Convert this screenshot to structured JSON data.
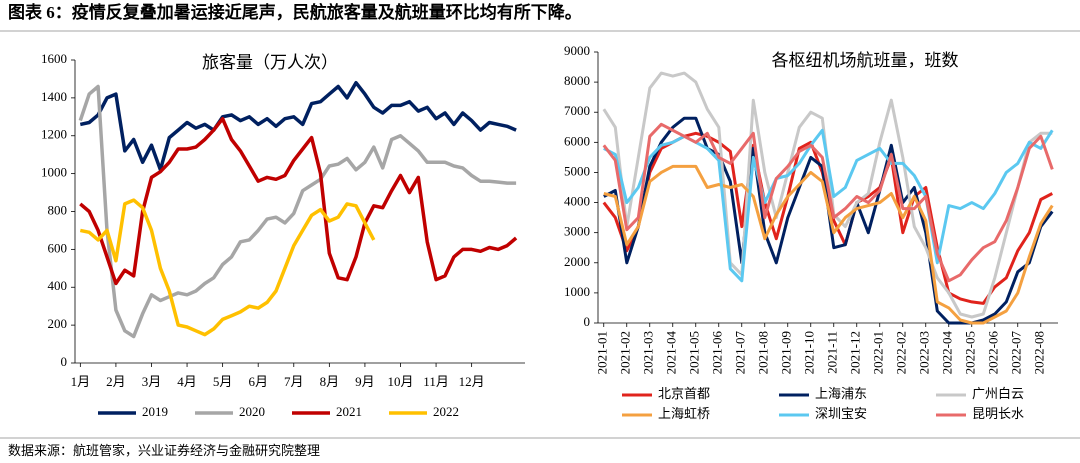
{
  "page_title": "图表 6：疫情反复叠加暑运接近尾声，民航旅客量及航班量环比均有所下降。",
  "source": "数据来源：航班管家，兴业证券经济与金融研究院整理",
  "chart_data": [
    {
      "type": "line",
      "title": "旅客量（万人次）",
      "x": [
        0,
        0.25,
        0.5,
        0.75,
        1,
        1.25,
        1.5,
        1.75,
        2,
        2.25,
        2.5,
        2.75,
        3,
        3.25,
        3.5,
        3.75,
        4,
        4.25,
        4.5,
        4.75,
        5,
        5.25,
        5.5,
        5.75,
        6,
        6.25,
        6.5,
        6.75,
        7,
        7.25,
        7.5,
        7.75,
        8,
        8.25,
        8.5,
        8.75,
        9,
        9.25,
        9.5,
        9.75,
        10,
        10.25,
        10.5,
        10.75,
        11,
        11.25,
        11.5,
        11.75,
        12,
        12.25
      ],
      "xlim": [
        -0.15,
        12.5
      ],
      "xticks": [
        {
          "value": 0,
          "label": "1月"
        },
        {
          "value": 1,
          "label": "2月"
        },
        {
          "value": 2,
          "label": "3月"
        },
        {
          "value": 3,
          "label": "4月"
        },
        {
          "value": 4,
          "label": "5月"
        },
        {
          "value": 5,
          "label": "6月"
        },
        {
          "value": 6,
          "label": "7月"
        },
        {
          "value": 7,
          "label": "8月"
        },
        {
          "value": 8,
          "label": "9月"
        },
        {
          "value": 9,
          "label": "10月"
        },
        {
          "value": 10,
          "label": "11月"
        },
        {
          "value": 11,
          "label": "12月"
        }
      ],
      "ylim": [
        0,
        1600
      ],
      "yticks": [
        0,
        200,
        400,
        600,
        800,
        1000,
        1200,
        1400,
        1600
      ],
      "legend": "bottom",
      "series": [
        {
          "name": "2019",
          "color": "#002060",
          "values": [
            1260,
            1270,
            1310,
            1400,
            1420,
            1120,
            1180,
            1060,
            1150,
            1020,
            1190,
            1230,
            1270,
            1240,
            1260,
            1230,
            1300,
            1310,
            1280,
            1300,
            1260,
            1290,
            1250,
            1290,
            1300,
            1260,
            1370,
            1380,
            1420,
            1460,
            1400,
            1480,
            1420,
            1350,
            1320,
            1360,
            1360,
            1380,
            1330,
            1350,
            1290,
            1320,
            1260,
            1320,
            1280,
            1230,
            1270,
            1260,
            1250,
            1230
          ]
        },
        {
          "name": "2020",
          "color": "#a6a6a6",
          "values": [
            1280,
            1420,
            1460,
            700,
            280,
            170,
            140,
            260,
            360,
            330,
            350,
            370,
            360,
            380,
            420,
            450,
            520,
            560,
            640,
            650,
            700,
            760,
            770,
            740,
            790,
            910,
            940,
            970,
            1040,
            1050,
            1080,
            1020,
            1060,
            1140,
            1030,
            1180,
            1200,
            1160,
            1120,
            1060,
            1060,
            1060,
            1040,
            1030,
            990,
            960,
            960,
            955,
            950,
            950
          ]
        },
        {
          "name": "2021",
          "color": "#c00000",
          "values": [
            840,
            800,
            700,
            560,
            420,
            490,
            460,
            800,
            980,
            1010,
            1060,
            1130,
            1130,
            1140,
            1180,
            1230,
            1290,
            1180,
            1120,
            1040,
            960,
            980,
            970,
            990,
            1070,
            1130,
            1190,
            1000,
            580,
            450,
            440,
            560,
            740,
            830,
            820,
            910,
            990,
            900,
            980,
            640,
            440,
            460,
            560,
            600,
            600,
            590,
            610,
            600,
            620,
            660
          ]
        },
        {
          "name": "2022",
          "color": "#ffc000",
          "values": [
            700,
            690,
            650,
            700,
            540,
            840,
            860,
            820,
            700,
            500,
            380,
            200,
            190,
            170,
            150,
            180,
            230,
            250,
            270,
            300,
            290,
            320,
            380,
            500,
            620,
            700,
            780,
            810,
            750,
            770,
            840,
            830,
            740,
            650,
            null,
            null,
            null,
            null,
            null,
            null,
            null,
            null,
            null,
            null,
            null,
            null,
            null,
            null,
            null,
            null
          ]
        }
      ]
    },
    {
      "type": "line",
      "title": "各枢纽机场航班量，班数",
      "x": [
        0,
        0.5,
        1,
        1.5,
        2,
        2.5,
        3,
        3.5,
        4,
        4.5,
        5,
        5.5,
        6,
        6.5,
        7,
        7.5,
        8,
        8.5,
        9,
        9.5,
        10,
        10.5,
        11,
        11.5,
        12,
        12.5,
        13,
        13.5,
        14,
        14.5,
        15,
        15.5,
        16,
        16.5,
        17,
        17.5,
        18,
        18.5,
        19,
        19.5
      ],
      "xlim": [
        -0.25,
        19.75
      ],
      "xticks": [
        {
          "value": 0,
          "label": "2021-01"
        },
        {
          "value": 1,
          "label": "2021-02"
        },
        {
          "value": 2,
          "label": "2021-03"
        },
        {
          "value": 3,
          "label": "2021-04"
        },
        {
          "value": 4,
          "label": "2021-05"
        },
        {
          "value": 5,
          "label": "2021-06"
        },
        {
          "value": 6,
          "label": "2021-07"
        },
        {
          "value": 7,
          "label": "2021-08"
        },
        {
          "value": 8,
          "label": "2021-09"
        },
        {
          "value": 9,
          "label": "2021-10"
        },
        {
          "value": 10,
          "label": "2021-11"
        },
        {
          "value": 11,
          "label": "2021-12"
        },
        {
          "value": 12,
          "label": "2022-01"
        },
        {
          "value": 13,
          "label": "2022-02"
        },
        {
          "value": 14,
          "label": "2022-03"
        },
        {
          "value": 15,
          "label": "2022-04"
        },
        {
          "value": 16,
          "label": "2022-05"
        },
        {
          "value": 17,
          "label": "2022-06"
        },
        {
          "value": 18,
          "label": "2022-07"
        },
        {
          "value": 19,
          "label": "2022-08"
        }
      ],
      "ylim": [
        0,
        9000
      ],
      "yticks": [
        0,
        1000,
        2000,
        3000,
        4000,
        5000,
        6000,
        7000,
        8000,
        9000
      ],
      "legend": "bottom",
      "series": [
        {
          "name": "北京首都",
          "color": "#e0231c",
          "values": [
            4000,
            3500,
            2400,
            3200,
            5000,
            5800,
            6000,
            6200,
            6300,
            6200,
            6000,
            5700,
            3200,
            5900,
            4000,
            2800,
            4200,
            5800,
            6000,
            5000,
            3400,
            2600,
            4000,
            4200,
            4500,
            5500,
            3000,
            4200,
            4500,
            2500,
            1000,
            800,
            700,
            650,
            1200,
            1500,
            2400,
            3000,
            4100,
            4300
          ]
        },
        {
          "name": "上海浦东",
          "color": "#002060",
          "values": [
            4200,
            4400,
            2000,
            3200,
            5200,
            6000,
            6500,
            6800,
            6800,
            5800,
            5600,
            4700,
            2000,
            5800,
            3000,
            2000,
            3500,
            4500,
            5500,
            5200,
            2500,
            2600,
            4000,
            3000,
            4400,
            5900,
            4000,
            4500,
            3000,
            400,
            0,
            0,
            0,
            100,
            300,
            700,
            1700,
            2000,
            3200,
            3700
          ]
        },
        {
          "name": "广州白云",
          "color": "#c8c8c8",
          "values": [
            7100,
            6500,
            3200,
            5500,
            7800,
            8300,
            8200,
            8300,
            8000,
            7100,
            6500,
            2000,
            1600,
            7400,
            5000,
            3500,
            5000,
            6500,
            7000,
            6800,
            3600,
            3200,
            4000,
            4300,
            6000,
            7400,
            5500,
            3200,
            2500,
            1500,
            1000,
            300,
            200,
            300,
            1500,
            3000,
            4500,
            6000,
            6300,
            6300
          ]
        },
        {
          "name": "上海虹桥",
          "color": "#f4a040",
          "values": [
            4300,
            4200,
            2600,
            3200,
            4700,
            5000,
            5200,
            5200,
            5200,
            4500,
            4600,
            4500,
            4600,
            4200,
            2800,
            3600,
            4200,
            4600,
            5000,
            4700,
            3000,
            3500,
            3800,
            3900,
            4000,
            4300,
            3500,
            4200,
            3400,
            700,
            500,
            100,
            0,
            0,
            200,
            400,
            1000,
            2200,
            3300,
            3900
          ]
        },
        {
          "name": "深圳宝安",
          "color": "#5bc8f0",
          "values": [
            5800,
            5600,
            4000,
            4500,
            5500,
            5900,
            6000,
            6200,
            6000,
            5800,
            5400,
            1800,
            1400,
            5500,
            4000,
            4800,
            4900,
            5300,
            5900,
            6400,
            4200,
            4500,
            5400,
            5600,
            5800,
            5300,
            5300,
            4900,
            4200,
            2000,
            3900,
            3800,
            4000,
            3800,
            4300,
            5000,
            5300,
            6000,
            5800,
            6400
          ]
        },
        {
          "name": "昆明长水",
          "color": "#e86a6a",
          "values": [
            5900,
            5400,
            3100,
            3500,
            6200,
            6600,
            6400,
            6200,
            6000,
            6300,
            5500,
            5300,
            5800,
            6300,
            3500,
            4800,
            5200,
            5700,
            5900,
            5500,
            3500,
            3800,
            4200,
            4000,
            4400,
            5600,
            3800,
            3800,
            4200,
            2300,
            1400,
            1600,
            2100,
            2500,
            2700,
            3400,
            4500,
            5800,
            6200,
            5100
          ]
        }
      ]
    }
  ]
}
